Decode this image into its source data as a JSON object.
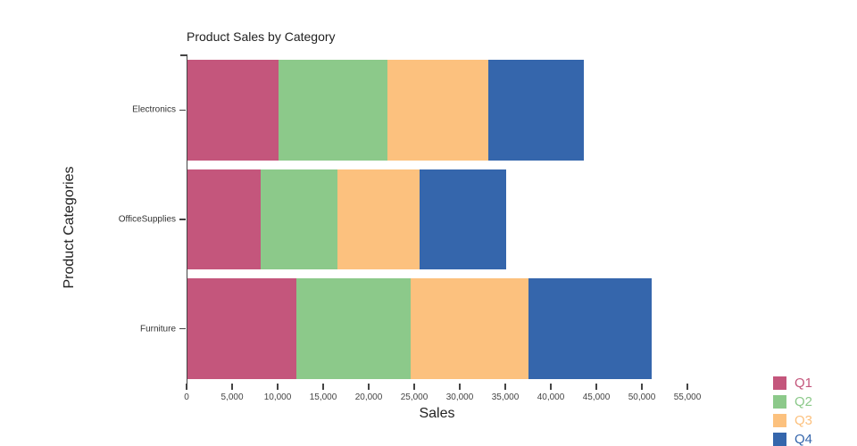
{
  "title": "Product Sales by Category",
  "chart_data": {
    "type": "bar",
    "orientation": "horizontal",
    "stacked": true,
    "title": "Product Sales by Category",
    "xlabel": "Sales",
    "ylabel": "Product Categories",
    "categories": [
      "Electronics",
      "OfficeSupplies",
      "Furniture"
    ],
    "series": [
      {
        "name": "Q1",
        "color": "#c4567c",
        "values": [
          10000,
          8000,
          12000
        ]
      },
      {
        "name": "Q2",
        "color": "#8cc98a",
        "values": [
          12000,
          8500,
          12500
        ]
      },
      {
        "name": "Q3",
        "color": "#fcc17e",
        "values": [
          11000,
          9000,
          13000
        ]
      },
      {
        "name": "Q4",
        "color": "#3566ac",
        "values": [
          10500,
          9500,
          13500
        ]
      }
    ],
    "xlim": [
      0,
      55000
    ],
    "xticks": [
      0,
      5000,
      10000,
      15000,
      20000,
      25000,
      30000,
      35000,
      40000,
      45000,
      50000,
      55000
    ],
    "xtick_labels": [
      "0",
      "5,000",
      "10,000",
      "15,000",
      "20,000",
      "25,000",
      "30,000",
      "35,000",
      "40,000",
      "45,000",
      "50,000",
      "55,000"
    ],
    "legend_position": "bottom-right-outside",
    "legend_entries": [
      "Q1",
      "Q2",
      "Q3",
      "Q4"
    ]
  }
}
